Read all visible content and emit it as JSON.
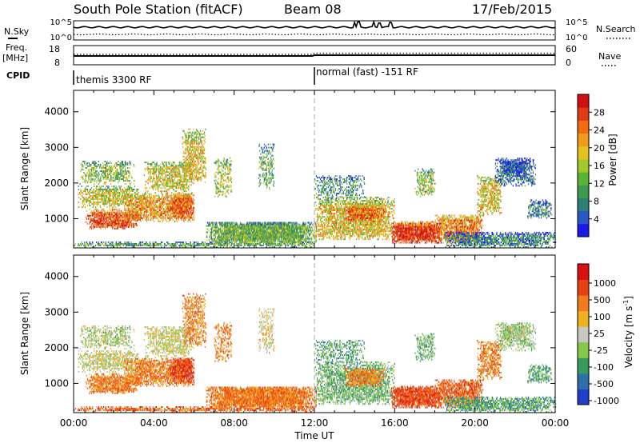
{
  "header": {
    "station": "South Pole Station (fitACF)",
    "beam": "Beam 08",
    "date": "17/Feb/2015"
  },
  "noise_panel": {
    "left_label": "N.Sky",
    "right_label": "N.Search",
    "ticks_left": [
      "10^5",
      "10^0"
    ],
    "ticks_right": [
      "10^5",
      "10^0"
    ]
  },
  "freq_panel": {
    "left_label_1": "Freq.",
    "left_label_2": "[MHz]",
    "right_label": "Nave",
    "ticks_left": [
      "18",
      "8"
    ],
    "ticks_right": [
      "60",
      "0"
    ]
  },
  "cpid": {
    "label": "CPID",
    "segments": [
      {
        "start_hour": 0,
        "text": "themis 3300 RF"
      },
      {
        "start_hour": 12,
        "text": "normal (fast) -151 RF"
      }
    ]
  },
  "chart_data": [
    {
      "type": "heatmap",
      "name": "power",
      "ylabel": "Slant Range [km]",
      "ylim": [
        180,
        4600
      ],
      "yticks": [
        1000,
        2000,
        3000,
        4000
      ],
      "xlim": [
        0,
        24
      ],
      "colorbar": {
        "label": "Power [dB]",
        "range": [
          0,
          32
        ],
        "ticks": [
          "4",
          "8",
          "12",
          "16",
          "20",
          "24",
          "28"
        ],
        "colors": [
          "#1a1ae6",
          "#2a57c4",
          "#2e7e78",
          "#3e9a4f",
          "#58b336",
          "#a3c82a",
          "#e6c21e",
          "#f29a1c",
          "#f26a14",
          "#e23a12",
          "#d01010"
        ]
      }
    },
    {
      "type": "heatmap",
      "name": "velocity",
      "ylabel": "Slant Range [km]",
      "ylim": [
        180,
        4600
      ],
      "yticks": [
        1000,
        2000,
        3000,
        4000
      ],
      "xlim": [
        0,
        24
      ],
      "xlabel": "Time UT",
      "xticks": [
        "00:00",
        "04:00",
        "08:00",
        "12:00",
        "16:00",
        "20:00",
        "00:00"
      ],
      "colorbar": {
        "label": "Velocity [m s",
        "label_sup": "-1",
        "label_end": "]",
        "ticks": [
          "1000",
          "500",
          "100",
          "25",
          "-25",
          "-100",
          "-500",
          "-1000"
        ],
        "colors": [
          "#1f3fc8",
          "#2d6fa8",
          "#3a9a5a",
          "#86c84a",
          "#c8c8c0",
          "#f0b020",
          "#f07a20",
          "#e84010",
          "#d81010"
        ]
      }
    }
  ]
}
